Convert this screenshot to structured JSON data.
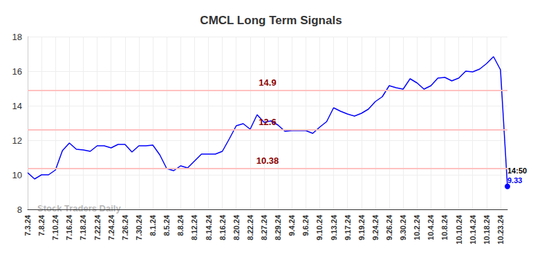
{
  "chart_data": {
    "type": "line",
    "title": "CMCL Long Term Signals",
    "categories": [
      "7.3.24",
      null,
      "7.8.24",
      null,
      "7.10.24",
      null,
      "7.16.24",
      null,
      "7.18.24",
      null,
      "7.22.24",
      null,
      "7.24.24",
      null,
      "7.26.24",
      null,
      "7.30.24",
      null,
      "8.1.24",
      null,
      "8.5.24",
      null,
      "8.8.24",
      null,
      "8.12.24",
      null,
      "8.14.24",
      null,
      "8.16.24",
      null,
      "8.20.24",
      null,
      "8.22.24",
      null,
      "8.27.24",
      null,
      "8.29.24",
      null,
      "9.4.24",
      null,
      "9.6.24",
      null,
      "9.10.24",
      null,
      "9.13.24",
      null,
      "9.17.24",
      null,
      "9.19.24",
      null,
      "9.24.24",
      null,
      "9.26.24",
      null,
      "9.30.24",
      null,
      "10.2.24",
      null,
      "10.4.24",
      null,
      "10.8.24",
      null,
      "10.10.24",
      null,
      "10.14.24",
      null,
      "10.18.24",
      null,
      "10.23.24",
      null
    ],
    "values": [
      10.12,
      9.76,
      10.0,
      10.0,
      10.28,
      11.4,
      11.84,
      11.48,
      11.44,
      11.36,
      11.68,
      11.68,
      11.56,
      11.76,
      11.76,
      11.32,
      11.68,
      11.68,
      11.72,
      11.16,
      10.36,
      10.24,
      10.52,
      10.4,
      10.8,
      11.2,
      11.2,
      11.2,
      11.36,
      12.08,
      12.84,
      12.96,
      12.64,
      13.48,
      13.04,
      13.12,
      12.88,
      12.52,
      12.56,
      12.56,
      12.56,
      12.4,
      12.76,
      13.08,
      13.88,
      13.68,
      13.52,
      13.4,
      13.56,
      13.8,
      14.24,
      14.52,
      15.16,
      15.04,
      14.96,
      15.56,
      15.32,
      14.96,
      15.16,
      15.6,
      15.64,
      15.44,
      15.6,
      16.0,
      15.96,
      16.12,
      16.44,
      16.84,
      16.08,
      9.33
    ],
    "color": "#0000ff",
    "ylim": [
      8,
      18
    ],
    "yticks": [
      8,
      10,
      12,
      14,
      16,
      18
    ],
    "grid": true,
    "levels": [
      14.9,
      12.6,
      10.38
    ],
    "last_time": "14:50",
    "watermark": "Stock Traders Daily"
  }
}
